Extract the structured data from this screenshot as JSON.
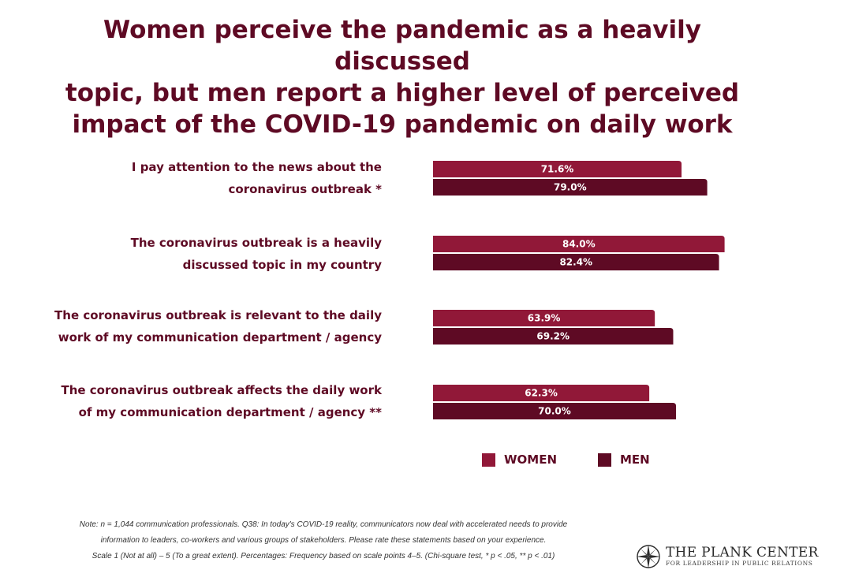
{
  "title_lines": [
    "Women perceive the pandemic as a heavily discussed",
    "topic, but men report a higher level of perceived",
    "impact of the COVID-19 pandemic on daily work"
  ],
  "colors": {
    "women": "#911838",
    "men": "#5e0a24",
    "text": "#5e0a24"
  },
  "chart_data": {
    "type": "bar",
    "orientation": "horizontal",
    "title": "Women perceive the pandemic as a heavily discussed topic, but men report a higher level of perceived impact of the COVID-19 pandemic on daily work",
    "categories": [
      [
        "I pay attention to the news about the",
        "coronavirus outbreak *"
      ],
      [
        "The coronavirus outbreak is a heavily",
        "discussed topic in my country"
      ],
      [
        "The coronavirus outbreak is relevant to the daily",
        "work of my communication department / agency"
      ],
      [
        "The coronavirus outbreak affects the daily work",
        "of my communication department / agency **"
      ]
    ],
    "series": [
      {
        "name": "WOMEN",
        "values": [
          71.6,
          84.0,
          63.9,
          62.3
        ],
        "labels": [
          "71.6%",
          "84.0%",
          "63.9%",
          "62.3%"
        ]
      },
      {
        "name": "MEN",
        "values": [
          79.0,
          82.4,
          69.2,
          70.0
        ],
        "labels": [
          "79.0%",
          "82.4%",
          "69.2%",
          "70.0%"
        ]
      }
    ],
    "legend_position": "bottom",
    "grid": false
  },
  "legend": {
    "women": "WOMEN",
    "men": "MEN"
  },
  "note_lines": [
    "Note: n = 1,044 communication professionals. Q38: In today's COVID-19 reality, communicators now deal with accelerated needs to provide",
    "information to leaders, co-workers and various groups of stakeholders. Please rate these statements based on your experience.",
    "Scale 1 (Not at all) – 5 (To a great extent). Percentages: Frequency based on scale points 4–5. (Chi-square test, * p < .05, ** p < .01)"
  ],
  "logo": {
    "name": "THE PLANK CENTER",
    "subtitle": "FOR LEADERSHIP IN PUBLIC RELATIONS",
    "icon": "compass-rose-icon"
  }
}
